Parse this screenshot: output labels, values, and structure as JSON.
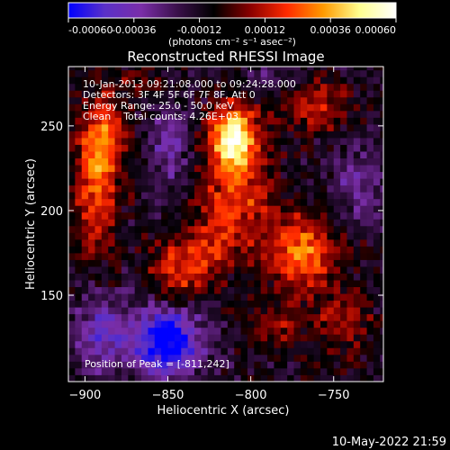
{
  "chart_data": {
    "type": "heatmap",
    "title": "Reconstructed RHESSI Image",
    "xlabel": "Heliocentric X (arcsec)",
    "ylabel": "Heliocentric Y (arcsec)",
    "xlim": [
      -910,
      -720
    ],
    "ylim": [
      99,
      285
    ],
    "xticks": [
      -900,
      -850,
      -800,
      -750
    ],
    "yticks": [
      150,
      200,
      250
    ],
    "colorbar": {
      "range": [
        -0.0006,
        0.0006
      ],
      "tick_values": [
        -0.0006,
        -0.00036,
        -0.00012,
        0.00012,
        0.00036,
        0.0006
      ],
      "tick_labels": [
        "-0.00060",
        "-0.00036",
        "-0.00012",
        "0.00012",
        "0.00036",
        "0.00060"
      ],
      "unit_label": "(photons cm⁻² s⁻¹ asec⁻²)",
      "colormap": [
        "#0000ff",
        "#5a30c8",
        "#7a2ea8",
        "#3a104a",
        "#000000",
        "#8a0000",
        "#ff2a00",
        "#ff9a00",
        "#ffff90",
        "#ffffff"
      ]
    },
    "annotations": [
      "10-Jan-2013 09:21:08.000 to 09:24:28.000",
      "Detectors: 3F 4F 5F 6F 7F 8F, Att 0",
      "Energy Range: 25.0 - 50.0 keV",
      "Clean    Total counts: 4.26E+03"
    ],
    "peak_label": "Position of Peak = [-811,242]",
    "peak_position": [
      -811,
      242
    ],
    "blobs": [
      {
        "x": -811,
        "y": 244,
        "sx": 9,
        "sy": 13,
        "amp": 0.00062
      },
      {
        "x": -808,
        "y": 210,
        "sx": 16,
        "sy": 22,
        "amp": 0.0003
      },
      {
        "x": -893,
        "y": 220,
        "sx": 10,
        "sy": 30,
        "amp": 0.00036
      },
      {
        "x": -887,
        "y": 246,
        "sx": 9,
        "sy": 12,
        "amp": 0.00022
      },
      {
        "x": -770,
        "y": 175,
        "sx": 15,
        "sy": 16,
        "amp": 0.0004
      },
      {
        "x": -845,
        "y": 165,
        "sx": 12,
        "sy": 12,
        "amp": 0.0003
      },
      {
        "x": -762,
        "y": 262,
        "sx": 16,
        "sy": 10,
        "amp": 0.00026
      },
      {
        "x": -745,
        "y": 135,
        "sx": 12,
        "sy": 14,
        "amp": 0.00022
      },
      {
        "x": -785,
        "y": 130,
        "sx": 10,
        "sy": 10,
        "amp": 0.00018
      },
      {
        "x": -870,
        "y": 275,
        "sx": 14,
        "sy": 6,
        "amp": 0.00012
      },
      {
        "x": -825,
        "y": 178,
        "sx": 10,
        "sy": 14,
        "amp": 0.0002
      },
      {
        "x": -850,
        "y": 122,
        "sx": 14,
        "sy": 14,
        "amp": -0.00055
      },
      {
        "x": -890,
        "y": 128,
        "sx": 12,
        "sy": 16,
        "amp": -0.00028
      },
      {
        "x": -850,
        "y": 240,
        "sx": 8,
        "sy": 18,
        "amp": -0.00022
      },
      {
        "x": -735,
        "y": 215,
        "sx": 10,
        "sy": 14,
        "amp": -0.0002
      },
      {
        "x": -790,
        "y": 280,
        "sx": 12,
        "sy": 6,
        "amp": -0.00015
      }
    ]
  },
  "footer_date": "10-May-2022 21:59"
}
